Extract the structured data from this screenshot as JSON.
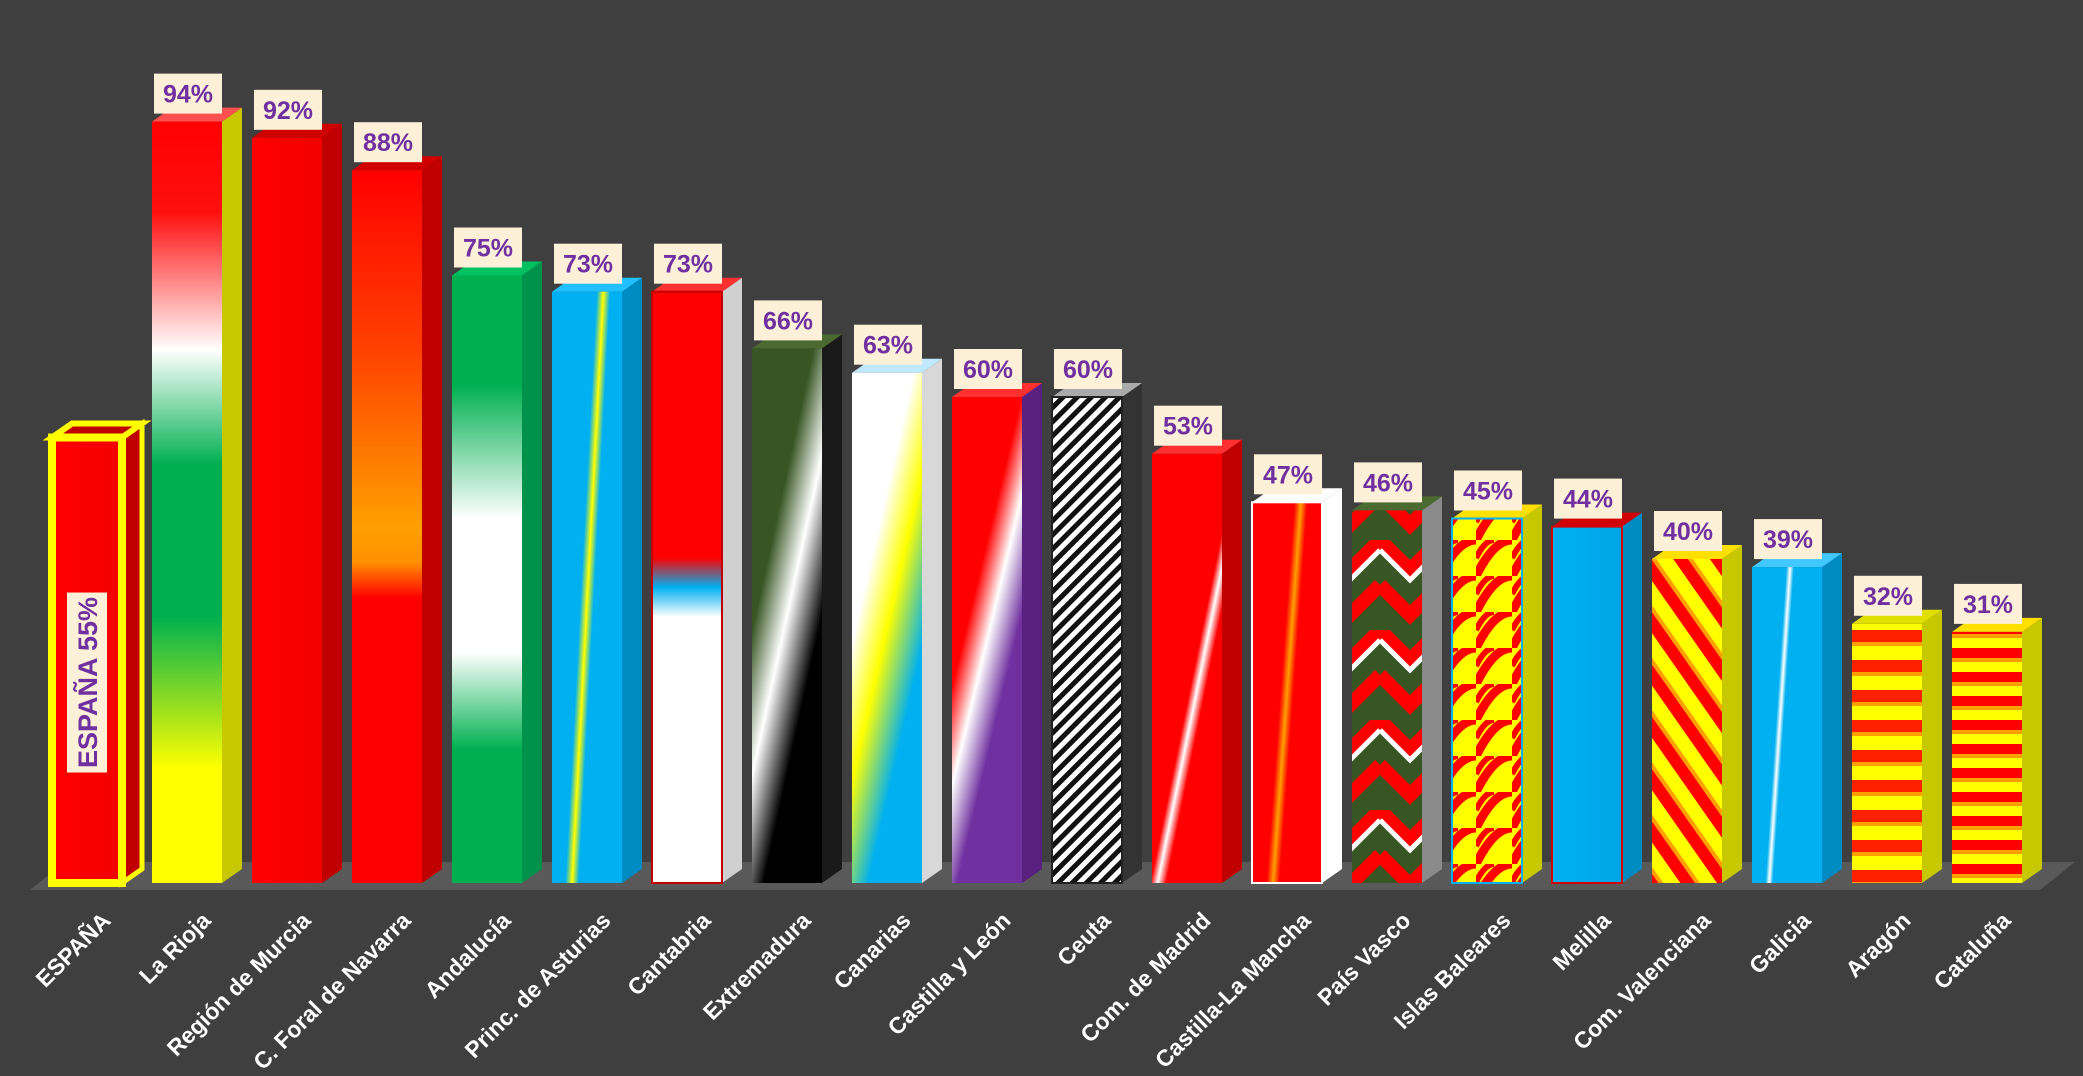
{
  "chart_data": {
    "type": "bar",
    "title": "",
    "xlabel": "",
    "ylabel": "",
    "ylim": [
      0,
      100
    ],
    "categories": [
      "ESPAÑA",
      "La Rioja",
      "Región de Murcia",
      "C. Foral de Navarra",
      "Andalucía",
      "Princ. de Asturias",
      "Cantabria",
      "Extremadura",
      "Canarias",
      "Castilla y León",
      "Ceuta",
      "Com. de Madrid",
      "Castilla-La Mancha",
      "País Vasco",
      "Islas Baleares",
      "Melilla",
      "Com. Valenciana",
      "Galicia",
      "Aragón",
      "Cataluña"
    ],
    "values": [
      55,
      94,
      92,
      88,
      75,
      73,
      73,
      66,
      63,
      60,
      60,
      53,
      47,
      46,
      45,
      44,
      40,
      39,
      32,
      31
    ],
    "value_labels": [
      "ESPAÑA 55%",
      "94%",
      "92%",
      "88%",
      "75%",
      "73%",
      "73%",
      "66%",
      "63%",
      "60%",
      "60%",
      "53%",
      "47%",
      "46%",
      "45%",
      "44%",
      "40%",
      "39%",
      "32%",
      "31%"
    ]
  },
  "colors": {
    "background": "#3f3f3f",
    "label_box": "#fdf0d8",
    "label_text": "#7030a0",
    "axis_text": "#ffffff",
    "highlight_border": "#ffff00"
  }
}
